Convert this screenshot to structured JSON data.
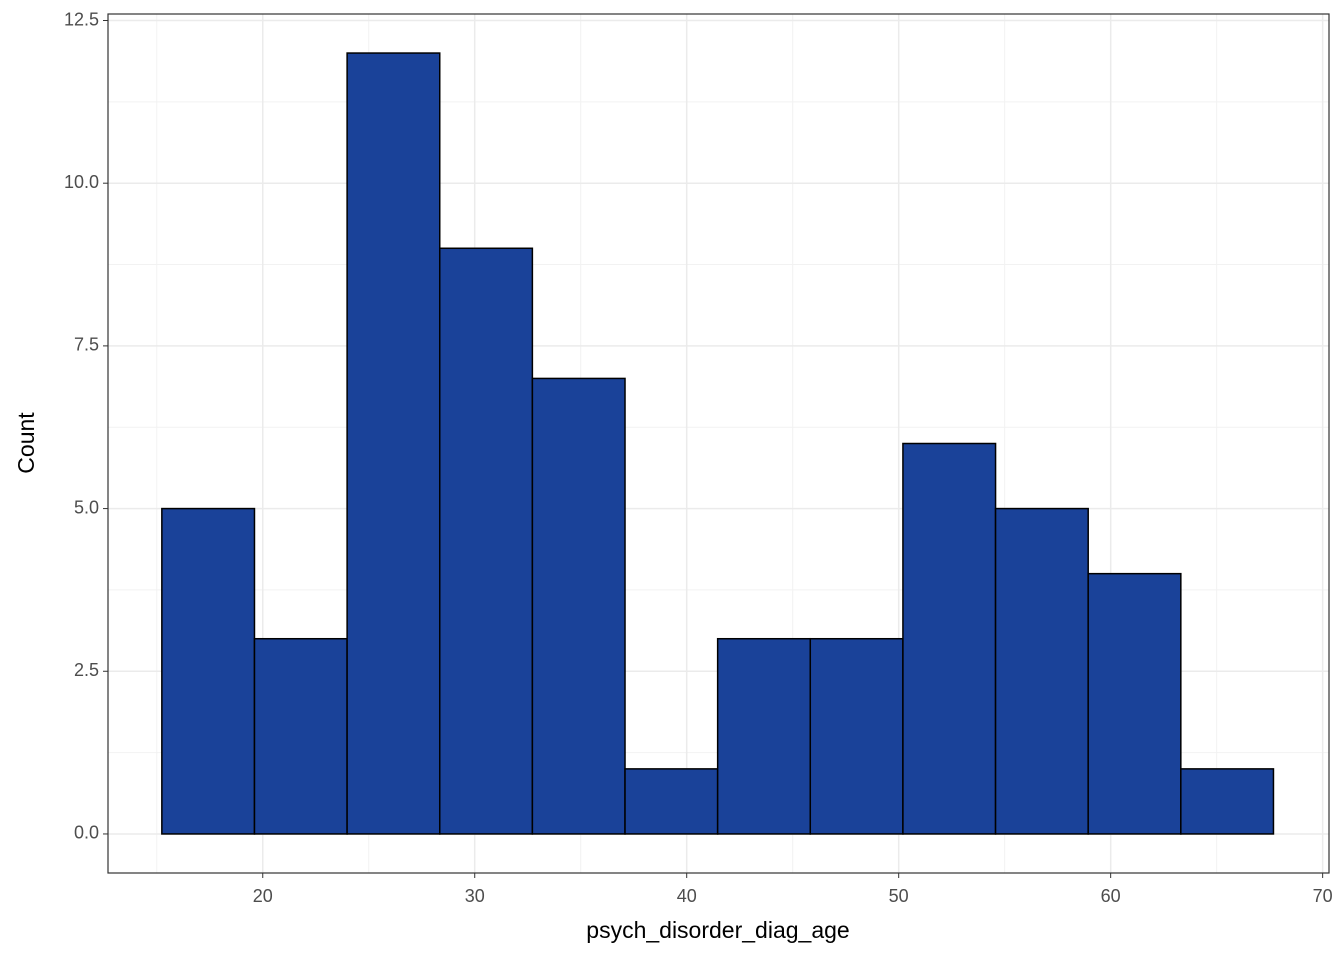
{
  "chart_data": {
    "type": "histogram",
    "x_label": "psych_disorder_diag_age",
    "y_label": "Count",
    "bins": [
      15.24,
      19.61,
      23.98,
      28.35,
      32.72,
      37.09,
      41.46,
      45.83,
      50.2,
      54.57,
      58.94,
      63.31,
      67.68
    ],
    "counts": [
      5,
      3,
      12,
      9,
      7,
      1,
      3,
      3,
      6,
      5,
      4,
      1
    ],
    "color": "#1a4299",
    "edgecolor": "#000000",
    "xlim": [
      12.7,
      70.3
    ],
    "xticks": [
      20,
      30,
      40,
      50,
      60,
      70
    ],
    "ylim": [
      -0.6,
      12.6
    ],
    "yticks": [
      {
        "value": 0,
        "label": "0.0"
      },
      {
        "value": 2.5,
        "label": "2.5"
      },
      {
        "value": 5,
        "label": "5.0"
      },
      {
        "value": 7.5,
        "label": "7.5"
      },
      {
        "value": 10,
        "label": "10.0"
      },
      {
        "value": 12.5,
        "label": "12.5"
      }
    ],
    "grid": true
  }
}
